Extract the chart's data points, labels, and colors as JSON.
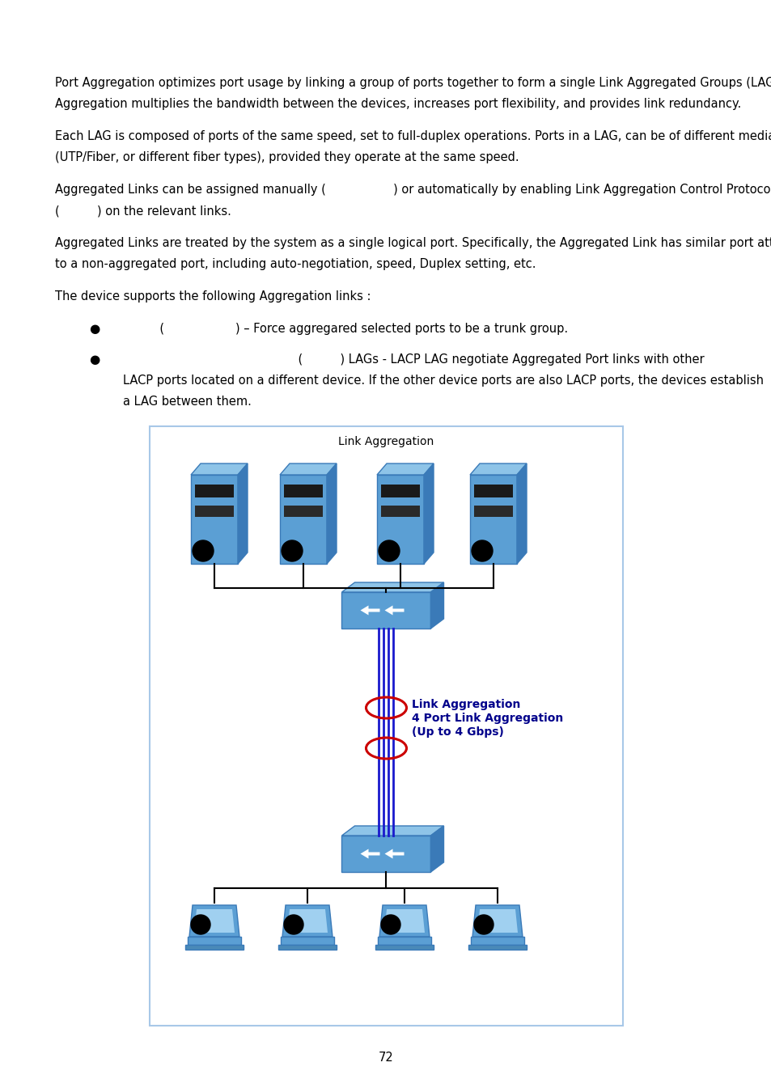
{
  "page_number": "72",
  "background_color": "#ffffff",
  "text_color": "#000000",
  "para1_line1": "Port Aggregation optimizes port usage by linking a group of ports together to form a single Link Aggregated Groups (LAGs). Port",
  "para1_line2": "Aggregation multiplies the bandwidth between the devices, increases port flexibility, and provides link redundancy.",
  "para2_line1": "Each LAG is composed of ports of the same speed, set to full-duplex operations. Ports in a LAG, can be of different media types",
  "para2_line2": "(UTP/Fiber, or different fiber types), provided they operate at the same speed.",
  "para3_line1": "Aggregated Links can be assigned manually (                  ) or automatically by enabling Link Aggregation Control Protocol",
  "para3_line2": "(          ) on the relevant links.",
  "para4_line1": "Aggregated Links are treated by the system as a single logical port. Specifically, the Aggregated Link has similar port attributes",
  "para4_line2": "to a non-aggregated port, including auto-negotiation, speed, Duplex setting, etc.",
  "para5": "The device supports the following Aggregation links :",
  "bullet1_text": "               (                   ) – Force aggregared selected ports to be a trunk group.",
  "bullet2_line1": "                                                    (          ) LAGs - LACP LAG negotiate Aggregated Port links with other",
  "bullet2_line2": "LACP ports located on a different device. If the other device ports are also LACP ports, the devices establish",
  "bullet2_line3": "a LAG between them.",
  "diagram_title": "Link Aggregation",
  "label1": "Link Aggregation",
  "label2": "4 Port Link Aggregation",
  "label3": "(Up to 4 Gbps)",
  "box_border_color": "#a8c8e8",
  "label_color": "#00008B",
  "red_color": "#cc0000",
  "blue_line_color": "#1a1acd",
  "font_size": 10.5,
  "server_front_color": "#5b9fd4",
  "server_top_color": "#8ec4e8",
  "server_right_color": "#3a7ab8",
  "switch_front_color": "#5b9fd4",
  "switch_top_color": "#8ec4e8",
  "switch_right_color": "#3a7ab8",
  "laptop_color": "#5b9fd4",
  "stripe_color1": "#1a1a1a",
  "stripe_color2": "#2a2a2a"
}
